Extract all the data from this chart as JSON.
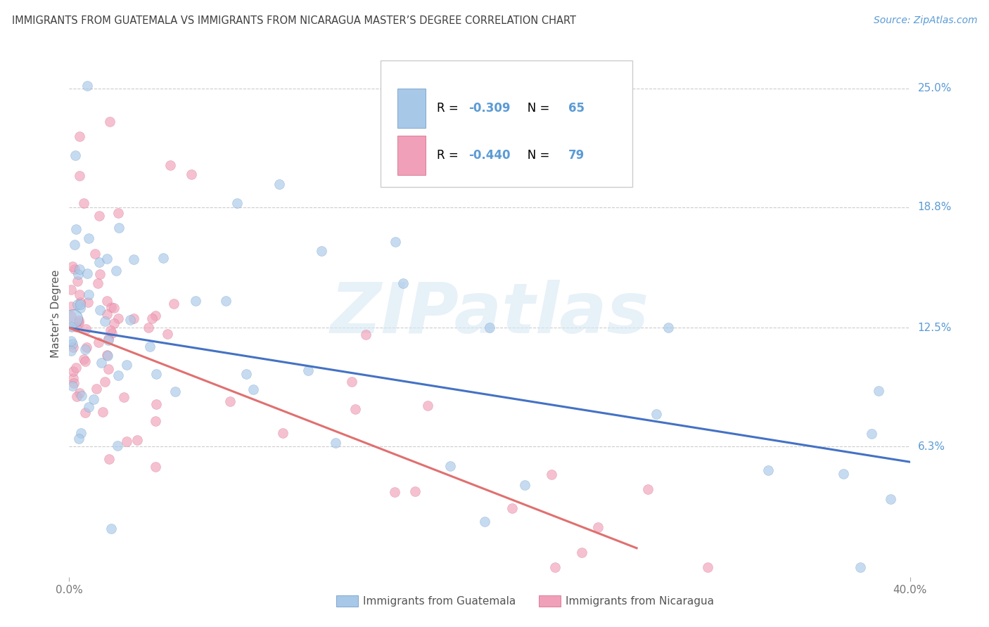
{
  "title": "IMMIGRANTS FROM GUATEMALA VS IMMIGRANTS FROM NICARAGUA MASTER’S DEGREE CORRELATION CHART",
  "source": "Source: ZipAtlas.com",
  "ylabel": "Master's Degree",
  "ytick_labels": [
    "25.0%",
    "18.8%",
    "12.5%",
    "6.3%"
  ],
  "ytick_values": [
    0.25,
    0.188,
    0.125,
    0.063
  ],
  "xlim": [
    0.0,
    0.4
  ],
  "ylim": [
    -0.005,
    0.27
  ],
  "legend_r1": "R = ",
  "legend_r1_val": "-0.309",
  "legend_n1": "N = ",
  "legend_n1_val": "65",
  "legend_r2": "R = ",
  "legend_r2_val": "-0.440",
  "legend_n2": "N = ",
  "legend_n2_val": "79",
  "color_blue_fill": "#A8C8E8",
  "color_pink_fill": "#F0A0B8",
  "color_blue_edge": "#6090C0",
  "color_pink_edge": "#D06080",
  "color_blue_line": "#4472C4",
  "color_pink_line": "#E07070",
  "color_blue_text": "#5B9BD5",
  "color_title": "#404040",
  "color_source": "#5B9BD5",
  "color_axis_right": "#5B9BD5",
  "color_grid": "#CCCCCC",
  "watermark": "ZIPatlas",
  "watermark_color": "#D8E8F4",
  "dot_size": 100,
  "dot_alpha": 0.65
}
